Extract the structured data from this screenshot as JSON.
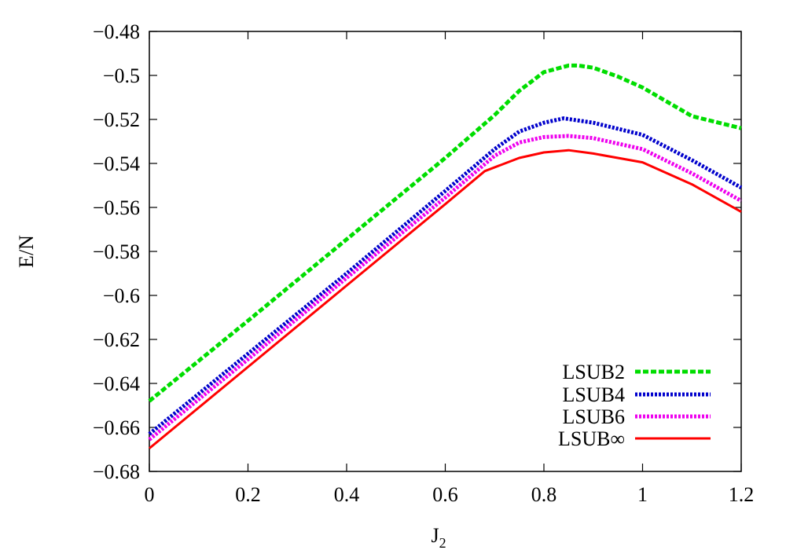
{
  "chart_data": {
    "type": "line",
    "xlabel": "J",
    "xlabel_sub": "2",
    "ylabel": "E/N",
    "xlim": [
      0,
      1.2
    ],
    "ylim": [
      -0.68,
      -0.48
    ],
    "xticks": [
      0,
      0.2,
      0.4,
      0.6,
      0.8,
      1,
      1.2
    ],
    "xtick_labels": [
      "0",
      "0.2",
      "0.4",
      "0.6",
      "0.8",
      "1",
      "1.2"
    ],
    "yticks": [
      -0.68,
      -0.66,
      -0.64,
      -0.62,
      -0.6,
      -0.58,
      -0.56,
      -0.54,
      -0.52,
      -0.5,
      -0.48
    ],
    "ytick_labels": [
      "−0.68",
      "−0.66",
      "−0.64",
      "−0.62",
      "−0.6",
      "−0.58",
      "−0.56",
      "−0.54",
      "−0.52",
      "−0.5",
      "−0.48"
    ],
    "grid": false,
    "legend_position": "bottom-right",
    "series": [
      {
        "name": "LSUB2",
        "color": "#00dd00",
        "style": "dashed",
        "points": [
          [
            0,
            -0.648
          ],
          [
            0.2,
            -0.6115
          ],
          [
            0.4,
            -0.5745
          ],
          [
            0.6,
            -0.5375
          ],
          [
            0.7,
            -0.518
          ],
          [
            0.75,
            -0.507
          ],
          [
            0.8,
            -0.4985
          ],
          [
            0.85,
            -0.4955
          ],
          [
            0.87,
            -0.4955
          ],
          [
            0.9,
            -0.4965
          ],
          [
            0.95,
            -0.5005
          ],
          [
            1.0,
            -0.5055
          ],
          [
            1.1,
            -0.5185
          ],
          [
            1.2,
            -0.524
          ]
        ]
      },
      {
        "name": "LSUB4",
        "color": "#0000cc",
        "style": "dotted",
        "points": [
          [
            0,
            -0.663
          ],
          [
            0.2,
            -0.6265
          ],
          [
            0.4,
            -0.59
          ],
          [
            0.6,
            -0.5525
          ],
          [
            0.7,
            -0.5335
          ],
          [
            0.75,
            -0.5255
          ],
          [
            0.8,
            -0.5215
          ],
          [
            0.84,
            -0.5195
          ],
          [
            0.9,
            -0.5215
          ],
          [
            1.0,
            -0.527
          ],
          [
            1.1,
            -0.5385
          ],
          [
            1.2,
            -0.551
          ]
        ]
      },
      {
        "name": "LSUB6",
        "color": "#ee00ee",
        "style": "dotted",
        "points": [
          [
            0,
            -0.6655
          ],
          [
            0.2,
            -0.629
          ],
          [
            0.4,
            -0.592
          ],
          [
            0.6,
            -0.5555
          ],
          [
            0.7,
            -0.5365
          ],
          [
            0.75,
            -0.5305
          ],
          [
            0.8,
            -0.528
          ],
          [
            0.85,
            -0.5275
          ],
          [
            0.9,
            -0.5285
          ],
          [
            1.0,
            -0.5335
          ],
          [
            1.1,
            -0.5445
          ],
          [
            1.2,
            -0.557
          ]
        ]
      },
      {
        "name": "LSUB∞",
        "color": "#ff0000",
        "style": "solid",
        "points": [
          [
            0,
            -0.6695
          ],
          [
            0.2,
            -0.6325
          ],
          [
            0.4,
            -0.5955
          ],
          [
            0.6,
            -0.5585
          ],
          [
            0.68,
            -0.5435
          ],
          [
            0.75,
            -0.5375
          ],
          [
            0.8,
            -0.535
          ],
          [
            0.85,
            -0.534
          ],
          [
            0.9,
            -0.5355
          ],
          [
            1.0,
            -0.5395
          ],
          [
            1.1,
            -0.5495
          ],
          [
            1.2,
            -0.562
          ]
        ]
      }
    ]
  }
}
